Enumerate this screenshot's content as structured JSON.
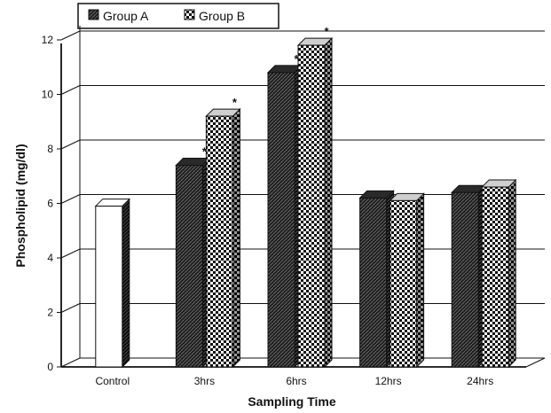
{
  "chart_data": {
    "type": "bar",
    "categories": [
      "Control",
      "3hrs",
      "6hrs",
      "12hrs",
      "24hrs"
    ],
    "series": [
      {
        "name": "Group A",
        "values": [
          null,
          7.4,
          10.8,
          6.2,
          6.4
        ]
      },
      {
        "name": "Group B",
        "values": [
          null,
          9.2,
          11.8,
          6.1,
          6.6
        ]
      }
    ],
    "control": {
      "category": "Control",
      "value": 5.9
    },
    "annotations": [
      {
        "category": "3hrs",
        "series": "Group A",
        "text": "*"
      },
      {
        "category": "3hrs",
        "series": "Group B",
        "text": "*"
      },
      {
        "category": "6hrs",
        "series": "Group A",
        "text": "*"
      },
      {
        "category": "6hrs",
        "series": "Group B",
        "text": "*"
      }
    ],
    "title": "",
    "xlabel": "Sampling Time",
    "ylabel": "Phospholipid (mg/dl)",
    "ylim": [
      0,
      12
    ],
    "yticks": [
      0,
      2,
      4,
      6,
      8,
      10,
      12
    ],
    "grid": true,
    "legend_position": "top-left",
    "style": "3d"
  }
}
